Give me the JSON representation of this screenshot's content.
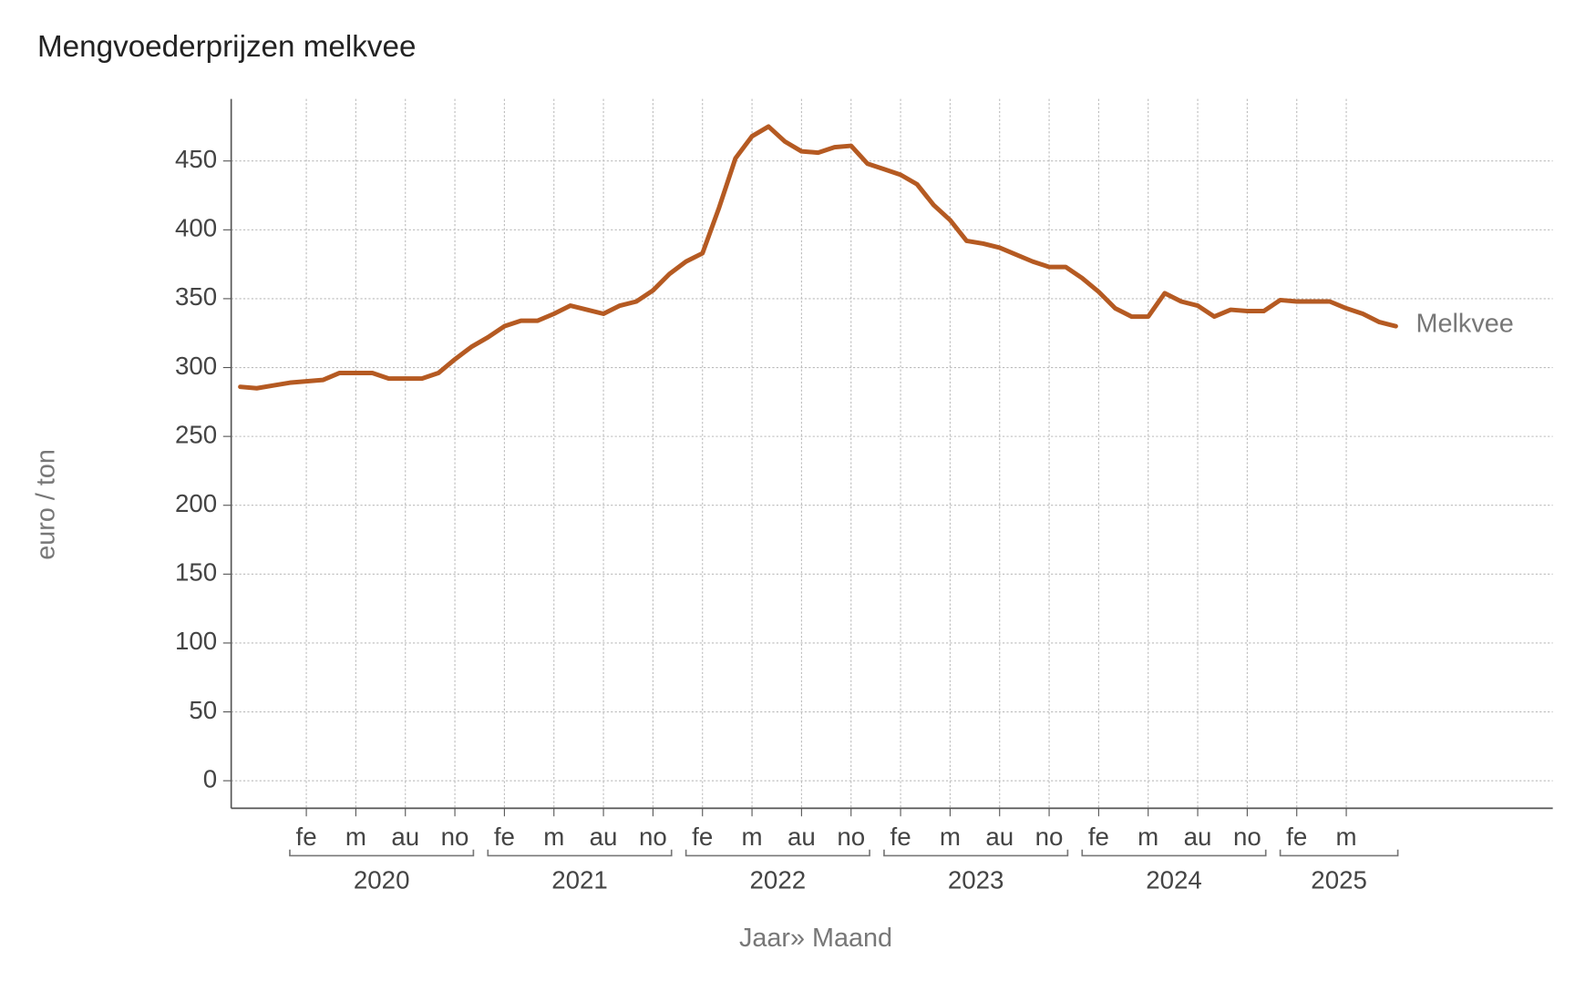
{
  "chart_data": {
    "type": "line",
    "title": "Mengvoederprijzen melkvee",
    "xlabel": "Jaar» Maand",
    "ylabel": "euro / ton",
    "ylim": [
      -20,
      495
    ],
    "yticks": [
      0,
      50,
      100,
      150,
      200,
      250,
      300,
      350,
      400,
      450
    ],
    "grid": true,
    "categories": [
      {
        "year": null,
        "months": [
          null,
          null,
          null
        ]
      },
      {
        "year": 2020,
        "months": [
          null,
          "fe",
          null,
          null,
          "m",
          null,
          null,
          "au",
          null,
          null,
          "no",
          null
        ]
      },
      {
        "year": 2021,
        "months": [
          null,
          "fe",
          null,
          null,
          "m",
          null,
          null,
          "au",
          null,
          null,
          "no",
          null
        ]
      },
      {
        "year": 2022,
        "months": [
          null,
          "fe",
          null,
          null,
          "m",
          null,
          null,
          "au",
          null,
          null,
          "no",
          null
        ]
      },
      {
        "year": 2023,
        "months": [
          null,
          "fe",
          null,
          null,
          "m",
          null,
          null,
          "au",
          null,
          null,
          "no",
          null
        ]
      },
      {
        "year": 2024,
        "months": [
          null,
          "fe",
          null,
          null,
          "m",
          null,
          null,
          "au",
          null,
          null,
          "no",
          null
        ]
      },
      {
        "year": 2025,
        "months": [
          null,
          "fe",
          null,
          null,
          "m",
          null,
          null,
          null
        ]
      }
    ],
    "series": [
      {
        "name": "Melkvee",
        "color": "#b55a22",
        "values": [
          [
            286,
            285,
            287
          ],
          [
            289,
            290,
            291,
            296,
            296,
            296,
            292,
            292,
            292,
            296,
            306,
            315
          ],
          [
            322,
            330,
            334,
            334,
            339,
            345,
            342,
            339,
            345,
            348,
            356,
            368
          ],
          [
            377,
            383,
            416,
            452,
            468,
            475,
            464,
            457,
            456,
            460,
            461,
            448
          ],
          [
            444,
            440,
            433,
            418,
            407,
            392,
            390,
            387,
            382,
            377,
            373,
            373
          ],
          [
            365,
            355,
            343,
            337,
            337,
            354,
            348,
            345,
            337,
            342,
            341,
            341
          ],
          [
            349,
            348,
            348,
            348,
            343,
            339,
            333,
            330
          ]
        ]
      }
    ]
  }
}
